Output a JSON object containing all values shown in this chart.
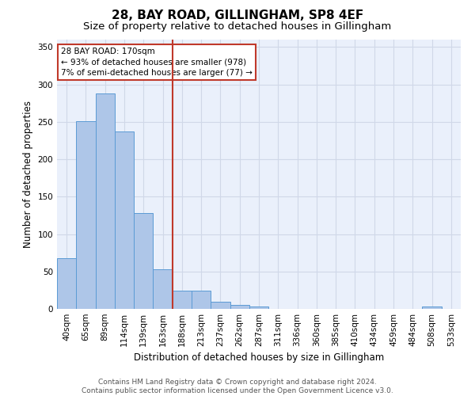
{
  "title1": "28, BAY ROAD, GILLINGHAM, SP8 4EF",
  "title2": "Size of property relative to detached houses in Gillingham",
  "xlabel": "Distribution of detached houses by size in Gillingham",
  "ylabel": "Number of detached properties",
  "categories": [
    "40sqm",
    "65sqm",
    "89sqm",
    "114sqm",
    "139sqm",
    "163sqm",
    "188sqm",
    "213sqm",
    "237sqm",
    "262sqm",
    "287sqm",
    "311sqm",
    "336sqm",
    "360sqm",
    "385sqm",
    "410sqm",
    "434sqm",
    "459sqm",
    "484sqm",
    "508sqm",
    "533sqm"
  ],
  "values": [
    68,
    251,
    288,
    237,
    128,
    53,
    24,
    24,
    10,
    5,
    3,
    0,
    0,
    0,
    0,
    0,
    0,
    0,
    0,
    3,
    0
  ],
  "bar_color": "#aec6e8",
  "bar_edge_color": "#5b9bd5",
  "vline_x": 5.5,
  "vline_color": "#c0392b",
  "annotation_line1": "28 BAY ROAD: 170sqm",
  "annotation_line2": "← 93% of detached houses are smaller (978)",
  "annotation_line3": "7% of semi-detached houses are larger (77) →",
  "annotation_box_color": "#ffffff",
  "annotation_box_edge_color": "#c0392b",
  "ylim": [
    0,
    360
  ],
  "yticks": [
    0,
    50,
    100,
    150,
    200,
    250,
    300,
    350
  ],
  "grid_color": "#d0d8e8",
  "bg_color": "#eaf0fb",
  "footer": "Contains HM Land Registry data © Crown copyright and database right 2024.\nContains public sector information licensed under the Open Government Licence v3.0.",
  "title1_fontsize": 11,
  "title2_fontsize": 9.5,
  "xlabel_fontsize": 8.5,
  "ylabel_fontsize": 8.5,
  "tick_fontsize": 7.5,
  "annotation_fontsize": 7.5,
  "footer_fontsize": 6.5
}
